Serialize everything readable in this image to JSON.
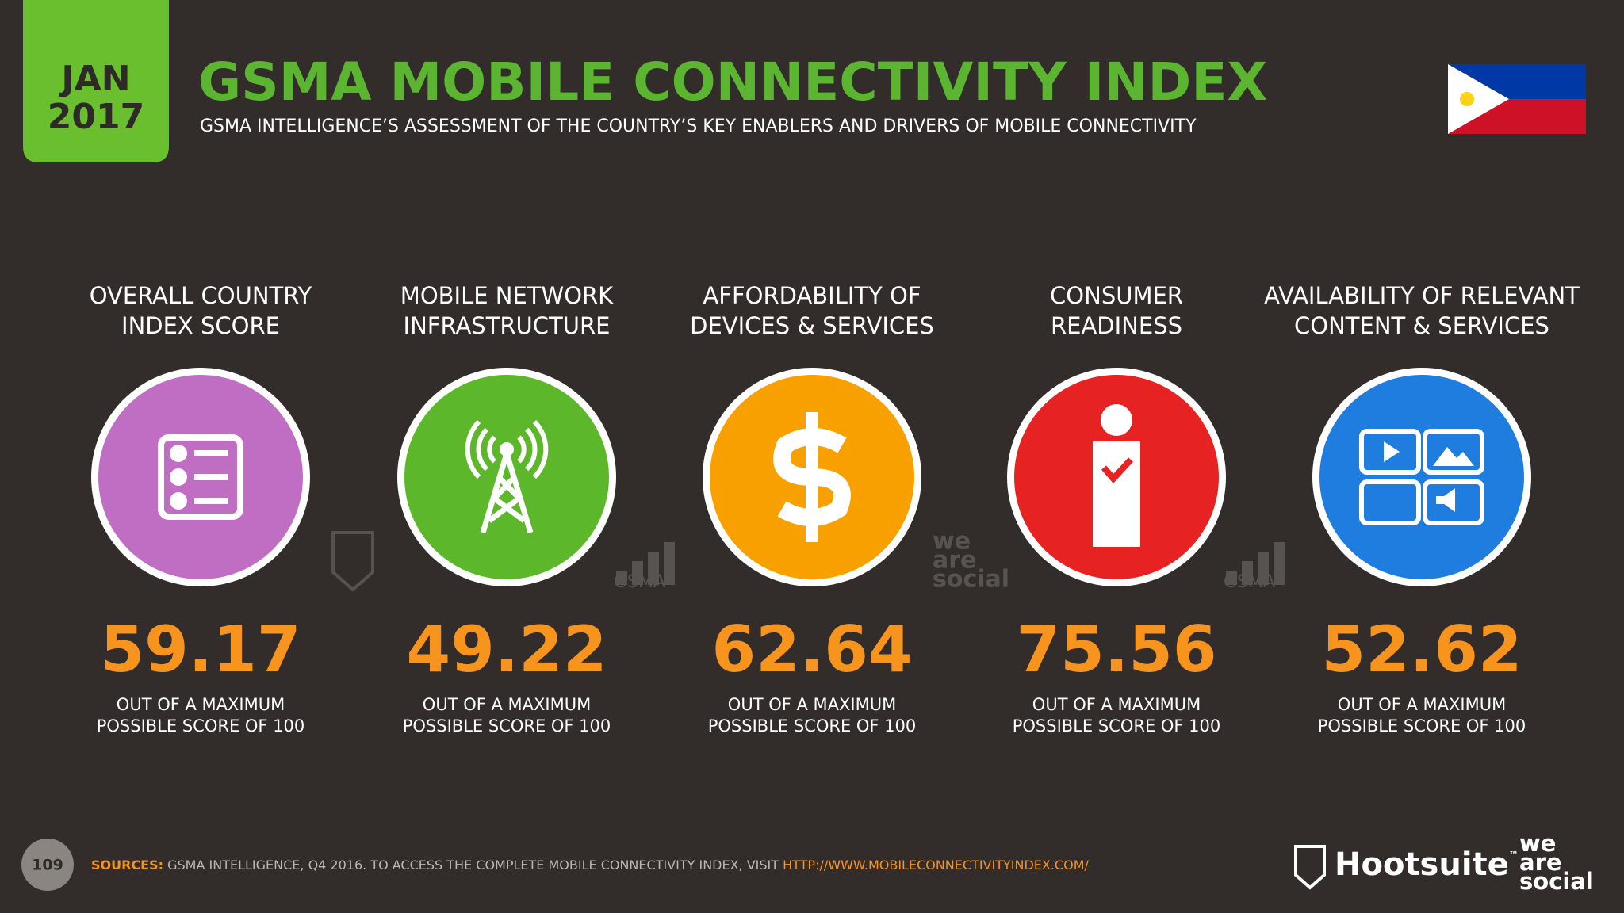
{
  "header": {
    "month": "JAN",
    "year": "2017",
    "title": "GSMA MOBILE CONNECTIVITY INDEX",
    "subtitle": "GSMA INTELLIGENCE’S ASSESSMENT OF THE COUNTRY’S KEY ENABLERS AND DRIVERS OF MOBILE CONNECTIVITY"
  },
  "items": [
    {
      "label": [
        "OVERALL COUNTRY",
        "INDEX SCORE"
      ],
      "score": 59.17,
      "note": [
        "OUT OF A MAXIMUM",
        "POSSIBLE SCORE OF 100"
      ],
      "color": "#c06ec4"
    },
    {
      "label": [
        "MOBILE NETWORK",
        "INFRASTRUCTURE"
      ],
      "score": 49.22,
      "note": [
        "OUT OF A MAXIMUM",
        "POSSIBLE SCORE OF 100"
      ],
      "color": "#5cb82a"
    },
    {
      "label": [
        "AFFORDABILITY OF",
        "DEVICES & SERVICES"
      ],
      "score": 62.64,
      "note": [
        "OUT OF A MAXIMUM",
        "POSSIBLE SCORE OF 100"
      ],
      "color": "#f7a000"
    },
    {
      "label": [
        "CONSUMER",
        "READINESS"
      ],
      "score": 75.56,
      "note": [
        "OUT OF A MAXIMUM",
        "POSSIBLE SCORE OF 100"
      ],
      "color": "#e62222"
    },
    {
      "label": [
        "AVAILABILITY OF RELEVANT",
        "CONTENT & SERVICES"
      ],
      "score": 52.62,
      "note": [
        "OUT OF A MAXIMUM",
        "POSSIBLE SCORE OF 100"
      ],
      "color": "#1f7de0"
    }
  ],
  "watermarks": {
    "gsma": "GSMA",
    "was": [
      "we",
      "are",
      "social"
    ]
  },
  "footer": {
    "page": "109",
    "sources_label": "SOURCES:",
    "sources": "GSMA INTELLIGENCE, Q4 2016. TO ACCESS THE COMPLETE MOBILE CONNECTIVITY INDEX, VISIT ",
    "url": "HTTP://WWW.MOBILECONNECTIVITYINDEX.COM/",
    "hootsuite": "Hootsuite",
    "tm": "™",
    "was": [
      "we",
      "are",
      "social"
    ]
  }
}
